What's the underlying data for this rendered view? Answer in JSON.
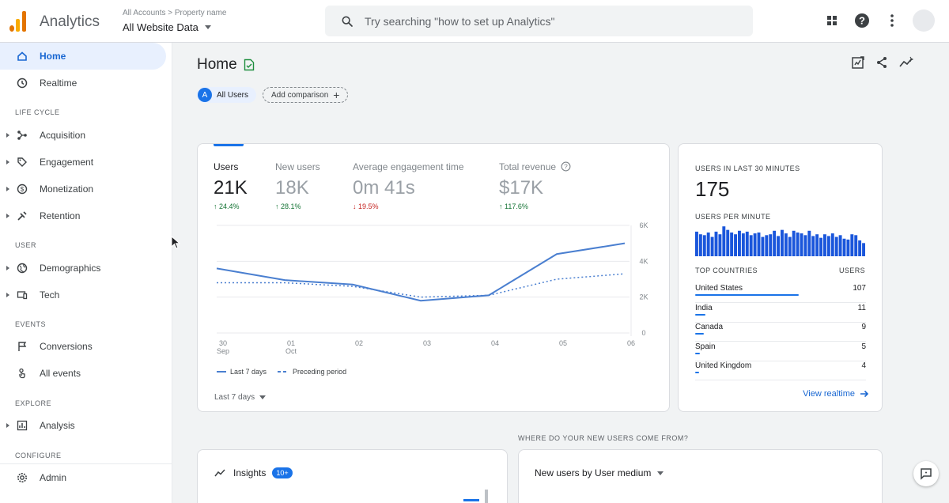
{
  "app": {
    "title": "Analytics"
  },
  "account": {
    "crumb_accounts": "All Accounts",
    "crumb_sep": ">",
    "crumb_property": "Property name",
    "name": "All Website Data"
  },
  "search": {
    "placeholder": "Try searching \"how to set up Analytics\""
  },
  "sidebar": {
    "home": "Home",
    "realtime": "Realtime",
    "section_lifecycle": "LIFE CYCLE",
    "acquisition": "Acquisition",
    "engagement": "Engagement",
    "monetization": "Monetization",
    "retention": "Retention",
    "section_user": "USER",
    "demographics": "Demographics",
    "tech": "Tech",
    "section_events": "EVENTS",
    "conversions": "Conversions",
    "all_events": "All events",
    "section_explore": "EXPLORE",
    "analysis": "Analysis",
    "section_configure": "CONFIGURE",
    "admin": "Admin"
  },
  "page": {
    "title": "Home",
    "segment_badge": "A",
    "segment_label": "All Users",
    "add_comparison": "Add comparison",
    "add_plus": "+"
  },
  "metrics": [
    {
      "name": "Users",
      "value": "21K",
      "change": "↑ 24.4%",
      "dir": "up"
    },
    {
      "name": "New users",
      "value": "18K",
      "change": "↑ 28.1%",
      "dir": "up"
    },
    {
      "name": "Average engagement time",
      "value": "0m 41s",
      "change": "↓ 19.5%",
      "dir": "down"
    },
    {
      "name": "Total revenue",
      "value": "$17K",
      "change": "↑ 117.6%",
      "dir": "up"
    }
  ],
  "chart_data": {
    "type": "line",
    "x": [
      "30",
      "01",
      "02",
      "03",
      "04",
      "05",
      "06"
    ],
    "x_sublabels": [
      "Sep",
      "Oct",
      "",
      "",
      "",
      "",
      ""
    ],
    "y_ticks": [
      "6K",
      "4K",
      "2K",
      "0"
    ],
    "ylim": [
      0,
      6000
    ],
    "series": [
      {
        "name": "Last 7 days",
        "values": [
          3600,
          2950,
          2700,
          1800,
          2100,
          4400,
          5000
        ],
        "style": "solid",
        "color": "#4a7fd0"
      },
      {
        "name": "Preceding period",
        "values": [
          2800,
          2800,
          2600,
          2000,
          2100,
          3000,
          3300
        ],
        "style": "dotted",
        "color": "#4a7fd0"
      }
    ],
    "grid": true,
    "legend": "bottom-left"
  },
  "chart_footer": {
    "range": "Last 7 days"
  },
  "realtime": {
    "title": "USERS IN LAST 30 MINUTES",
    "value": "175",
    "per_minute_label": "USERS PER MINUTE",
    "per_minute": [
      28,
      25,
      24,
      27,
      22,
      28,
      25,
      34,
      30,
      27,
      25,
      29,
      26,
      28,
      24,
      26,
      27,
      22,
      24,
      25,
      29,
      23,
      30,
      26,
      22,
      29,
      27,
      26,
      24,
      29,
      23,
      25,
      21,
      25,
      23,
      26,
      22,
      24,
      20,
      19,
      25,
      24,
      18,
      15
    ],
    "countries_header": "TOP COUNTRIES",
    "users_header": "USERS",
    "countries": [
      {
        "name": "United States",
        "value": "107",
        "users": 107
      },
      {
        "name": "India",
        "value": "11",
        "users": 11
      },
      {
        "name": "Canada",
        "value": "9",
        "users": 9
      },
      {
        "name": "Spain",
        "value": "5",
        "users": 5
      },
      {
        "name": "United Kingdom",
        "value": "4",
        "users": 4
      }
    ],
    "view_link": "View realtime"
  },
  "bottom": {
    "section_question": "WHERE DO YOUR NEW USERS COME FROM?",
    "insights_label": "Insights",
    "insights_badge": "10+",
    "new_users_label": "New users by User medium"
  },
  "colors": {
    "accent": "#1a73e8",
    "logo_orange": "#f9ab00",
    "logo_dark": "#e37400",
    "up": "#137333",
    "down": "#c5221f"
  }
}
